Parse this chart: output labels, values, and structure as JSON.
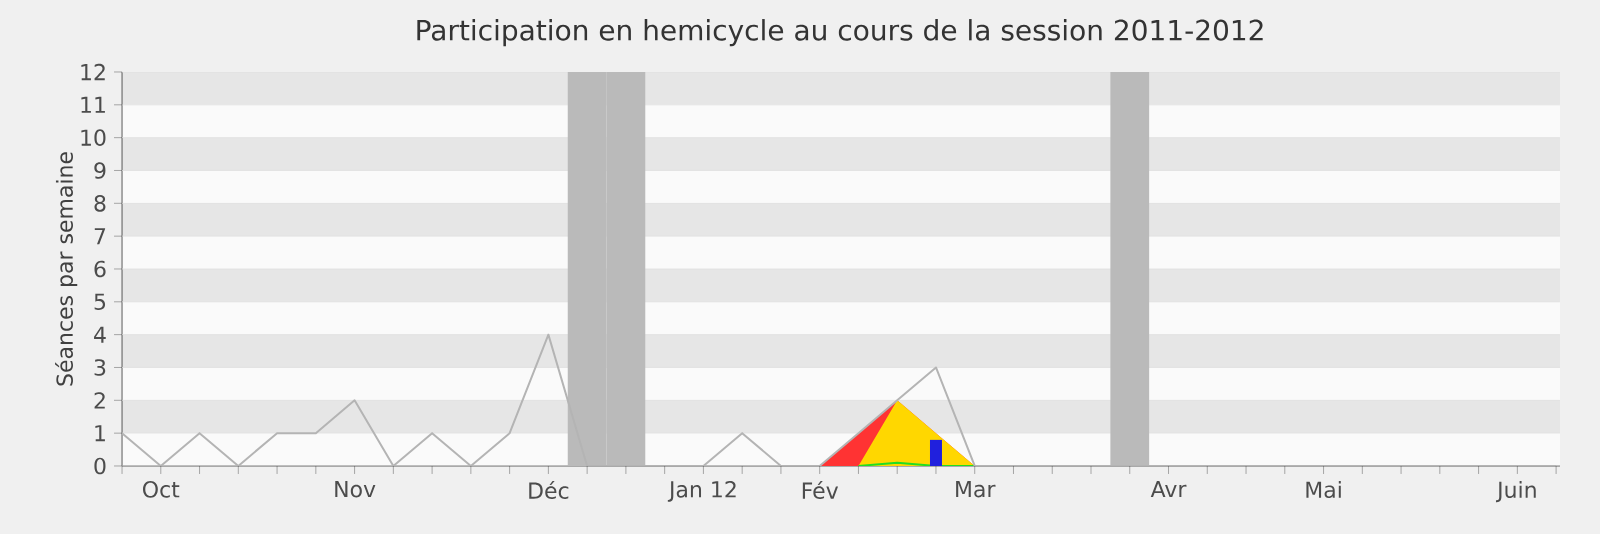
{
  "chart_data": {
    "type": "line",
    "title": "Participation en hemicycle au cours de la session 2011-2012",
    "ylabel": "Séances par semaine",
    "categories": [
      null,
      "Oct",
      null,
      null,
      null,
      null,
      "Nov",
      null,
      null,
      null,
      null,
      "Déc",
      null,
      null,
      null,
      "Jan 12",
      null,
      null,
      "Fév",
      null,
      null,
      null,
      "Mar",
      null,
      null,
      null,
      null,
      "Avr",
      null,
      null,
      null,
      "Mai",
      null,
      null,
      null,
      null,
      "Juin",
      null
    ],
    "series": [
      {
        "type": "bar",
        "color": "#bababa",
        "values": [
          null,
          null,
          null,
          null,
          null,
          null,
          null,
          null,
          null,
          null,
          null,
          null,
          12,
          12,
          null,
          null,
          null,
          null,
          null,
          null,
          null,
          null,
          null,
          null,
          null,
          null,
          12,
          null,
          null,
          null,
          null,
          null,
          null,
          null,
          null,
          null,
          null,
          null
        ]
      },
      {
        "type": "area",
        "color": "#ff3333",
        "values": [
          null,
          null,
          null,
          null,
          null,
          null,
          null,
          null,
          null,
          null,
          null,
          null,
          null,
          null,
          null,
          null,
          null,
          null,
          0,
          1,
          2,
          1,
          0,
          null,
          null,
          null,
          null,
          null,
          null,
          null,
          null,
          null,
          null,
          null,
          null,
          null,
          null,
          null
        ]
      },
      {
        "type": "area",
        "color": "#ffd700",
        "values": [
          null,
          null,
          null,
          null,
          null,
          null,
          null,
          null,
          null,
          null,
          null,
          null,
          null,
          null,
          null,
          null,
          null,
          null,
          null,
          0,
          2,
          1,
          0,
          null,
          null,
          null,
          null,
          null,
          null,
          null,
          null,
          null,
          null,
          null,
          null,
          null,
          null,
          null
        ]
      },
      {
        "type": "line",
        "color": "#22dd22",
        "values": [
          null,
          null,
          null,
          null,
          null,
          null,
          null,
          null,
          null,
          null,
          null,
          null,
          null,
          null,
          null,
          null,
          null,
          null,
          null,
          0,
          0.1,
          0,
          0,
          null,
          null,
          null,
          null,
          null,
          null,
          null,
          null,
          null,
          null,
          null,
          null,
          null,
          null,
          null
        ]
      },
      {
        "type": "bar",
        "color": "#2020dd",
        "values": [
          null,
          null,
          null,
          null,
          null,
          null,
          null,
          null,
          null,
          null,
          null,
          null,
          null,
          null,
          null,
          null,
          null,
          null,
          null,
          null,
          null,
          0.8,
          null,
          null,
          null,
          null,
          null,
          null,
          null,
          null,
          null,
          null,
          null,
          null,
          null,
          null,
          null,
          null
        ]
      },
      {
        "color": "#b4b4b4",
        "values": [
          1,
          0,
          1,
          0,
          1,
          1,
          2,
          0,
          1,
          0,
          1,
          4,
          0,
          0,
          0,
          0,
          1,
          0,
          0,
          1,
          2,
          3,
          0,
          0,
          0,
          0,
          0,
          0,
          0,
          0,
          0,
          0,
          0,
          0,
          0,
          0,
          0,
          0
        ]
      }
    ],
    "ylim": [
      0,
      12
    ],
    "yticks": [
      0,
      1,
      2,
      3,
      4,
      5,
      6,
      7,
      8,
      9,
      10,
      11,
      12
    ],
    "grid": "y"
  }
}
